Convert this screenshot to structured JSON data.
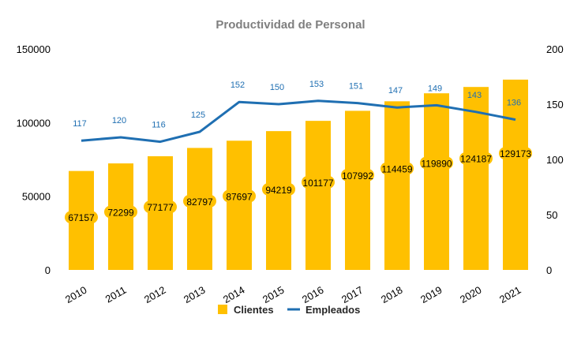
{
  "colors": {
    "bars": "#FFC000",
    "line": "#1F6FB2",
    "label_bg": "#FFC000",
    "title": "#7F7F7F"
  },
  "chart_data": {
    "type": "bar",
    "title": "Productividad de Personal",
    "categories": [
      "2010",
      "2011",
      "2012",
      "2013",
      "2014",
      "2015",
      "2016",
      "2017",
      "2018",
      "2019",
      "2020",
      "2021"
    ],
    "series": [
      {
        "name": "Clientes",
        "type": "bar",
        "axis": "left",
        "values": [
          67157,
          72299,
          77177,
          82797,
          87697,
          94219,
          101177,
          107992,
          114459,
          119890,
          124187,
          129173
        ]
      },
      {
        "name": "Empleados",
        "type": "line",
        "axis": "right",
        "values": [
          117,
          120,
          116,
          125,
          152,
          150,
          153,
          151,
          147,
          149,
          143,
          136
        ]
      }
    ],
    "ylim_left": [
      0,
      150000
    ],
    "yticks_left": [
      "0",
      "50000",
      "100000",
      "150000"
    ],
    "ylim_right": [
      0,
      200
    ],
    "yticks_right": [
      "0",
      "50",
      "100",
      "150",
      "200"
    ],
    "grid": false,
    "legend": {
      "position": "bottom",
      "items": [
        "Clientes",
        "Empleados"
      ]
    }
  }
}
